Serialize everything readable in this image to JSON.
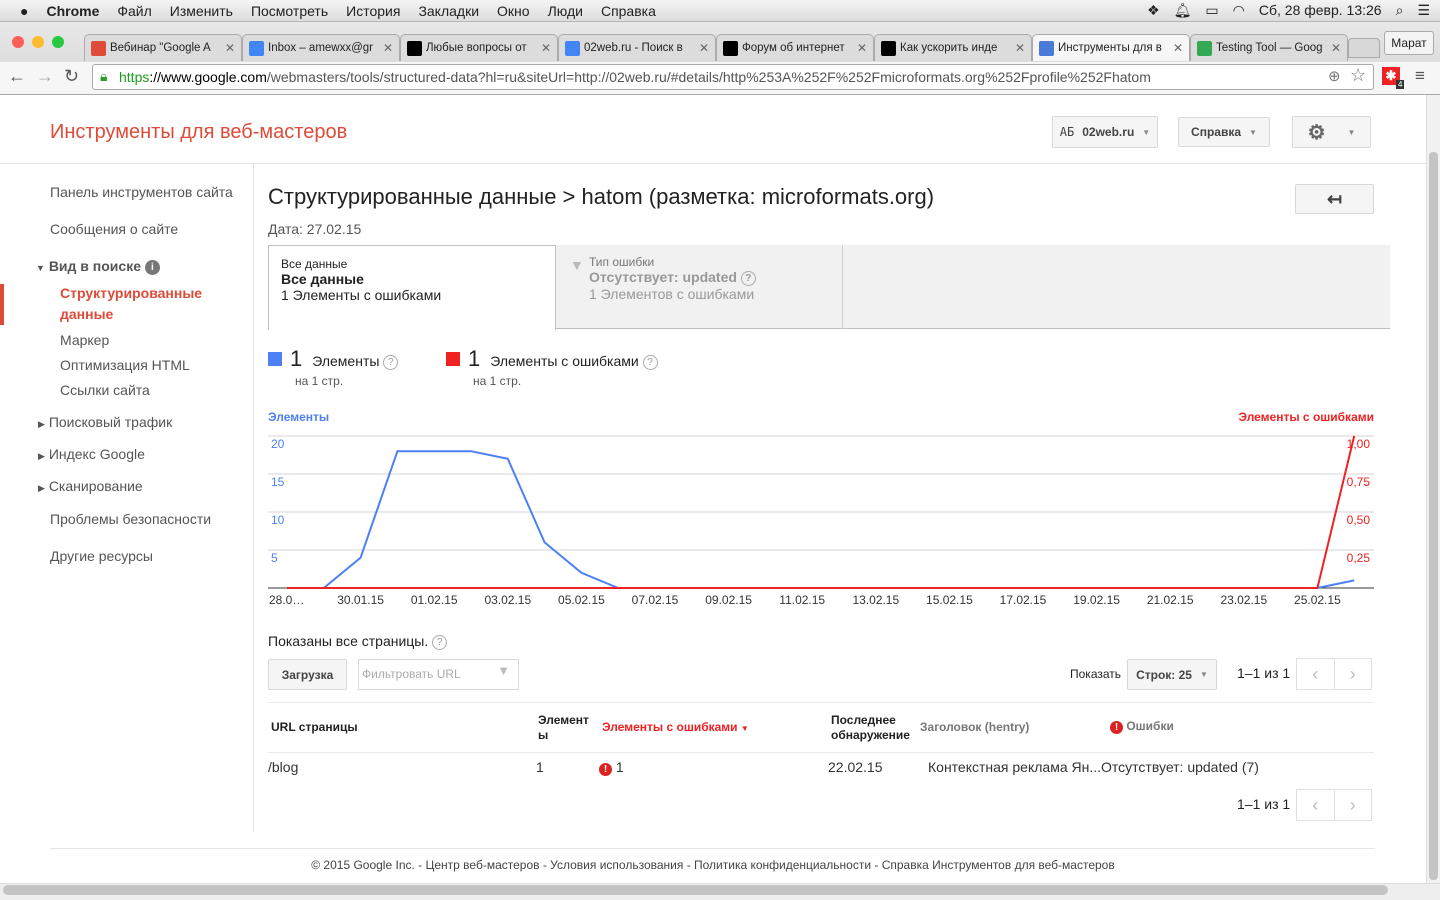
{
  "menubar": {
    "app": "Chrome",
    "items": [
      "Файл",
      "Изменить",
      "Посмотреть",
      "История",
      "Закладки",
      "Окно",
      "Люди",
      "Справка"
    ],
    "datetime": "Сб, 28 февр.  13:26"
  },
  "browser": {
    "tabs": [
      {
        "title": "Вебинар \"Google A",
        "icon": "google-plus-icon",
        "color": "#dd4b39"
      },
      {
        "title": "Inbox – amewxx@gr",
        "icon": "inbox-icon",
        "color": "#4285f4"
      },
      {
        "title": "Любые вопросы от",
        "icon": "e-icon",
        "color": "#000000"
      },
      {
        "title": "02web.ru - Поиск в",
        "icon": "google-search-icon",
        "color": "#4285f4"
      },
      {
        "title": "Форум об интернет",
        "icon": "e-icon",
        "color": "#000000"
      },
      {
        "title": "Как ускорить инде",
        "icon": "e-icon",
        "color": "#000000"
      },
      {
        "title": "Инструменты для в",
        "icon": "webmaster-icon",
        "color": "#4a7bd6",
        "active": true
      },
      {
        "title": "Testing Tool — Goog",
        "icon": "testing-tool-icon",
        "color": "#34a853"
      }
    ],
    "user": "Марат",
    "url": {
      "scheme": "https",
      "domain": "://www.google.com",
      "rest": "/webmasters/tools/structured-data?hl=ru&siteUrl=http://02web.ru/#details/http%253A%252F%252Fmicroformats.org%252Fprofile%252Fhatom"
    },
    "extension_badge": "4"
  },
  "header": {
    "logo": "Инструменты для веб-мастеров",
    "site": "02web.ru",
    "site_prefix": "АБ",
    "help": "Справка"
  },
  "sidebar": {
    "dashboard": "Панель инструментов сайта",
    "messages": "Сообщения о сайте",
    "search_appearance": "Вид в поиске",
    "active": "Структурированные данные",
    "marker": "Маркер",
    "html": "Оптимизация HTML",
    "sitelinks": "Ссылки сайта",
    "traffic": "Поисковый трафик",
    "index": "Индекс Google",
    "crawl": "Сканирование",
    "security": "Проблемы безопасности",
    "other": "Другие ресурсы"
  },
  "main": {
    "title": "Структурированные данные > hatom (разметка: microformats.org)",
    "date": "Дата: 27.02.15",
    "seg1": {
      "label": "Все данные",
      "value": "Все данные",
      "count": "1 Элементы с ошибками"
    },
    "seg2": {
      "label": "Тип ошибки",
      "value": "Отсутствует: updated",
      "count": "1 Элементов с ошибками"
    },
    "legend": [
      {
        "num": "1",
        "label": "Элементы",
        "sub": "на 1 стр.",
        "color": "#4d7ff5"
      },
      {
        "num": "1",
        "label": "Элементы с ошибками",
        "sub": "на 1 стр.",
        "color": "#ee2222"
      }
    ],
    "pages_note": "Показаны все страницы.",
    "download": "Загрузка",
    "filter_placeholder": "Фильтровать URL",
    "show": "Показать",
    "rows": "Строк: 25",
    "range": "1–1 из 1",
    "columns": [
      "URL страницы",
      "Элемент ы",
      "Элементы с ошибками",
      "Последнее обнаружение",
      "Заголовок (hentry)",
      "Ошибки"
    ],
    "rows_data": [
      {
        "url": "/blog",
        "items": "1",
        "errors": "1",
        "last": "22.02.15",
        "title": "Контекстная реклама Ян...",
        "error": "Отсутствует: updated (7)"
      }
    ]
  },
  "chart_data": {
    "type": "line",
    "y_left_label": "Элементы",
    "y_right_label": "Элементы с ошибками",
    "x": [
      "28.01.15",
      "29.01.15",
      "30.01.15",
      "31.01.15",
      "01.02.15",
      "02.02.15",
      "03.02.15",
      "04.02.15",
      "05.02.15",
      "06.02.15",
      "07.02.15",
      "08.02.15",
      "09.02.15",
      "10.02.15",
      "11.02.15",
      "12.02.15",
      "13.02.15",
      "14.02.15",
      "15.02.15",
      "16.02.15",
      "17.02.15",
      "18.02.15",
      "19.02.15",
      "20.02.15",
      "21.02.15",
      "22.02.15",
      "23.02.15",
      "24.02.15",
      "25.02.15",
      "26.02.15"
    ],
    "x_tick_labels": [
      "28.0…",
      "30.01.15",
      "01.02.15",
      "03.02.15",
      "05.02.15",
      "07.02.15",
      "09.02.15",
      "11.02.15",
      "13.02.15",
      "15.02.15",
      "17.02.15",
      "19.02.15",
      "21.02.15",
      "23.02.15",
      "25.02.15"
    ],
    "y_left_ticks": [
      "5",
      "10",
      "15",
      "20"
    ],
    "y_left_range": [
      0,
      20
    ],
    "y_right_ticks": [
      "0,25",
      "0,50",
      "0,75",
      "1,00"
    ],
    "y_right_range": [
      0,
      1
    ],
    "series": [
      {
        "name": "Элементы",
        "axis": "left",
        "color": "#4d7ff5",
        "values": [
          null,
          0,
          4,
          18,
          18,
          18,
          17,
          6,
          2,
          0,
          0,
          0,
          0,
          0,
          0,
          0,
          0,
          0,
          0,
          0,
          0,
          0,
          0,
          0,
          0,
          0,
          0,
          0,
          0,
          1
        ]
      },
      {
        "name": "Элементы с ошибками",
        "axis": "right",
        "color": "#ee2222",
        "values": [
          0,
          0,
          0,
          0,
          0,
          0,
          0,
          0,
          0,
          0,
          0,
          0,
          0,
          0,
          0,
          0,
          0,
          0,
          0,
          0,
          0,
          0,
          0,
          0,
          0,
          0,
          0,
          0,
          0,
          1
        ]
      }
    ],
    "grid": true
  },
  "footer": "© 2015 Google Inc. - Центр веб-мастеров - Условия использования - Политика конфиденциальности - Справка Инструментов для веб-мастеров"
}
